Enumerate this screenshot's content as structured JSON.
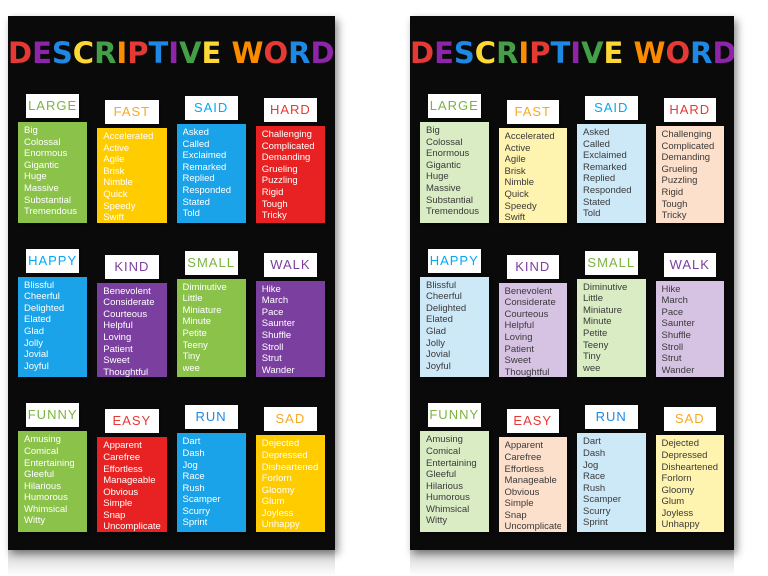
{
  "title": "DESCRIPTIVE WORDS",
  "title_letter_colors": [
    "#e53935",
    "#8e24aa",
    "#1e88e5",
    "#fdd835",
    "#43a047",
    "#fb8c00",
    "#e53935",
    "#1e88e5",
    "#8e24aa",
    "#43a047",
    "#fdd835",
    "#fb8c00",
    "#e53935",
    "#1e88e5",
    "#8e24aa",
    "#43a047",
    "#fdd835"
  ],
  "categories": [
    {
      "label": "LARGE",
      "label_color": "#7cb342",
      "bright": "#8bc34a",
      "pastel": "#d9ecc4",
      "words": [
        "Big",
        "Colossal",
        "Enormous",
        "Gigantic",
        "Huge",
        "Massive",
        "Substantial",
        "Tremendous"
      ]
    },
    {
      "label": "FAST",
      "label_color": "#f9a825",
      "bright": "#ffcc00",
      "pastel": "#fff3b0",
      "words": [
        "Accelerated",
        "Active",
        "Agile",
        "Brisk",
        "Nimble",
        "Quick",
        "Speedy",
        "Swift"
      ]
    },
    {
      "label": "SAID",
      "label_color": "#03a9f4",
      "bright": "#1aa3e8",
      "pastel": "#cde8f7",
      "words": [
        "Asked",
        "Called",
        "Exclaimed",
        "Remarked",
        "Replied",
        "Responded",
        "Stated",
        "Told"
      ]
    },
    {
      "label": "HARD",
      "label_color": "#e53935",
      "bright": "#e82222",
      "pastel": "#fde0cc",
      "words": [
        "Challenging",
        "Complicated",
        "Demanding",
        "Grueling",
        "Puzzling",
        "Rigid",
        "Tough",
        "Tricky"
      ]
    },
    {
      "label": "HAPPY",
      "label_color": "#03a9f4",
      "bright": "#1aa3e8",
      "pastel": "#cde8f7",
      "words": [
        "Blissful",
        "Cheerful",
        "Delighted",
        "Elated",
        "Glad",
        "Jolly",
        "Jovial",
        "Joyful"
      ]
    },
    {
      "label": "KIND",
      "label_color": "#7b3fa0",
      "bright": "#7b3fa0",
      "pastel": "#d6c3e3",
      "words": [
        "Benevolent",
        "Considerate",
        "Courteous",
        "Helpful",
        "Loving",
        "Patient",
        "Sweet",
        "Thoughtful"
      ]
    },
    {
      "label": "SMALL",
      "label_color": "#7cb342",
      "bright": "#8bc34a",
      "pastel": "#d9ecc4",
      "words": [
        "Diminutive",
        "Little",
        "Miniature",
        "Minute",
        "Petite",
        "Teeny",
        "Tiny",
        "wee"
      ]
    },
    {
      "label": "WALK",
      "label_color": "#7b3fa0",
      "bright": "#7b3fa0",
      "pastel": "#d6c3e3",
      "words": [
        "Hike",
        "March",
        "Pace",
        "Saunter",
        "Shuffle",
        "Stroll",
        "Strut",
        "Wander"
      ]
    },
    {
      "label": "FUNNY",
      "label_color": "#7cb342",
      "bright": "#8bc34a",
      "pastel": "#d9ecc4",
      "words": [
        "Amusing",
        "Comical",
        "Entertaining",
        "Gleeful",
        "Hilarious",
        "Humorous",
        "Whimsical",
        "Witty"
      ]
    },
    {
      "label": "EASY",
      "label_color": "#e53935",
      "bright": "#e82222",
      "pastel": "#fde0cc",
      "words": [
        "Apparent",
        "Carefree",
        "Effortless",
        "Manageable",
        "Obvious",
        "Simple",
        "Snap",
        "Uncomplicated"
      ]
    },
    {
      "label": "RUN",
      "label_color": "#1e88e5",
      "bright": "#1aa3e8",
      "pastel": "#cde8f7",
      "words": [
        "Dart",
        "Dash",
        "Jog",
        "Race",
        "Rush",
        "Scamper",
        "Scurry",
        "Sprint"
      ]
    },
    {
      "label": "SAD",
      "label_color": "#f9a825",
      "bright": "#ffcc00",
      "pastel": "#fff3b0",
      "words": [
        "Dejected",
        "Depressed",
        "Disheartened",
        "Forlorn",
        "Gloomy",
        "Glum",
        "Joyless",
        "Unhappy"
      ]
    }
  ]
}
